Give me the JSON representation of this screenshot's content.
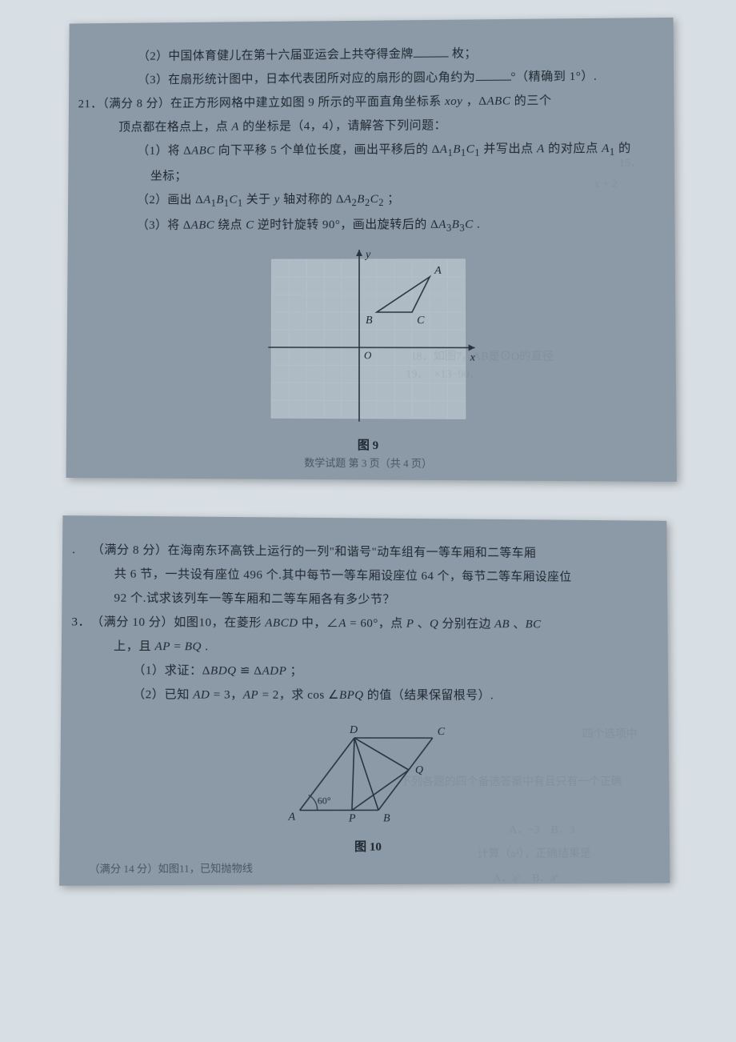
{
  "page1": {
    "lines": [
      {
        "cls": "indent2",
        "html": "（2）中国体育健儿在第十六届亚运会上共夺得金牌<span class='blank'></span> 枚；"
      },
      {
        "cls": "indent2",
        "html": "（3）在扇形统计图中，日本代表团所对应的扇形的圆心角约为<span class='blank'></span>°（精确到 1°）."
      },
      {
        "cls": "",
        "html": "<span class='q-num'>21．</span>（满分 8 分）在正方形网格中建立如图 9 所示的平面直角坐标系 <i>xoy</i> ，Δ<i>ABC</i> 的三个"
      },
      {
        "cls": "indent1",
        "html": "顶点都在格点上，点 <i>A</i> 的坐标是（4，4），请解答下列问题："
      },
      {
        "cls": "indent2",
        "html": "（1）将 Δ<i>ABC</i> 向下平移 5 个单位长度，画出平移后的 Δ<i>A</i><sub>1</sub><i>B</i><sub>1</sub><i>C</i><sub>1</sub> 并写出点 <i>A</i> 的对应点 <i>A</i><sub>1</sub> 的"
      },
      {
        "cls": "indent2",
        "html": "&nbsp;&nbsp;&nbsp;&nbsp;坐标；"
      },
      {
        "cls": "indent2",
        "html": "（2）画出 Δ<i>A</i><sub>1</sub><i>B</i><sub>1</sub><i>C</i><sub>1</sub> 关于 <i>y</i> 轴对称的 Δ<i>A</i><sub>2</sub><i>B</i><sub>2</sub><i>C</i><sub>2</sub> ；"
      },
      {
        "cls": "indent2",
        "html": "（3）将 Δ<i>ABC</i> 绕点 <i>C</i> 逆时针旋转 90°，画出旋转后的 Δ<i>A</i><sub>3</sub><i>B</i><sub>3</sub><i>C</i> ."
      }
    ],
    "figure": {
      "label": "图 9",
      "trail": "数学试题   第 3 页（共 4 页）",
      "grid": {
        "cols": 11,
        "rows": 9,
        "cell": 22,
        "originCol": 5,
        "originRow": 5,
        "yLabel": "y",
        "xLabel": "x",
        "oLabel": "O",
        "points": [
          {
            "label": "A",
            "col": 9,
            "row": 1
          },
          {
            "label": "B",
            "col": 6,
            "row": 3
          },
          {
            "label": "C",
            "col": 8,
            "row": 3
          }
        ],
        "triangleOrder": [
          "A",
          "B",
          "C"
        ],
        "colors": {
          "gridLine": "#b4c0c9",
          "gridFill": "#aebac4",
          "axis": "#2a3440",
          "text": "#202832"
        }
      }
    }
  },
  "page2": {
    "lines": [
      {
        "cls": "",
        "html": "<span class='q-num'>.&nbsp;</span>（满分 8 分）在海南东环高铁上运行的一列\"和谐号\"动车组有一等车厢和二等车厢"
      },
      {
        "cls": "indent1",
        "html": "共 6 节，一共设有座位 496 个.其中每节一等车厢设座位 64 个，每节二等车厢设座位"
      },
      {
        "cls": "indent1",
        "html": "92 个.试求该列车一等车厢和二等车厢各有多少节？"
      },
      {
        "cls": "",
        "html": "<span class='q-num'>3．</span>（满分 10 分）如图10，在菱形 <i>ABCD</i> 中，∠<i>A</i> = 60°，点 <i>P</i> 、<i>Q</i> 分别在边 <i>AB</i> 、<i>BC</i>"
      },
      {
        "cls": "indent1",
        "html": "上，且 <i>AP</i> = <i>BQ</i> ."
      },
      {
        "cls": "indent2",
        "html": "（1）求证：Δ<i>BDQ</i> ≌ Δ<i>ADP</i> ；"
      },
      {
        "cls": "indent2",
        "html": "（2）已知 <i>AD</i> = 3，<i>AP</i> = 2，求 cos ∠<i>BPQ</i> 的值（结果保留根号）."
      }
    ],
    "figure": {
      "label": "图 10",
      "trail": "（满分 14 分）如图11，已知抛物线",
      "rhombus": {
        "A": [
          20,
          120
        ],
        "B": [
          118,
          120
        ],
        "C": [
          186,
          30
        ],
        "D": [
          88,
          30
        ],
        "P": [
          85,
          120
        ],
        "Q": [
          156,
          70
        ],
        "angleLabel": "60°",
        "colors": {
          "line": "#2a3440",
          "text": "#202832"
        }
      }
    }
  }
}
